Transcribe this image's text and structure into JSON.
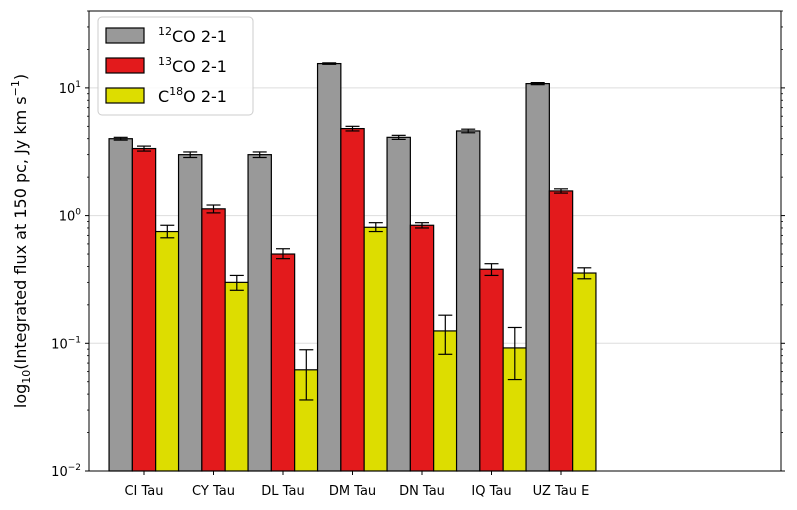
{
  "chart_data": {
    "type": "bar",
    "yscale": "log",
    "ylim": [
      0.01,
      40
    ],
    "ylabel": {
      "prefix": "log",
      "sub": "10",
      "main": "(Integrated flux at 150 pc, Jy km s",
      "sup": "−1",
      "suffix": ")"
    },
    "categories": [
      "CI Tau",
      "CY Tau",
      "DL Tau",
      "DM Tau",
      "DN Tau",
      "IQ Tau",
      "UZ Tau E"
    ],
    "yticks": [
      {
        "value": 0.01,
        "base": "10",
        "exp": "−2"
      },
      {
        "value": 0.1,
        "base": "10",
        "exp": "−1"
      },
      {
        "value": 1,
        "base": "10",
        "exp": "0"
      },
      {
        "value": 10,
        "base": "10",
        "exp": "1"
      }
    ],
    "grid": "horizontal major",
    "legend_position": "top-left",
    "series": [
      {
        "name": "12CO 2-1",
        "label": {
          "sup": "12",
          "text": "CO 2-1",
          "pre": ""
        },
        "color": "#999999",
        "values": [
          4.0,
          3.0,
          3.0,
          15.5,
          4.1,
          4.6,
          10.8
        ],
        "err_low": [
          3.9,
          2.85,
          2.85,
          15.3,
          3.95,
          4.45,
          10.6
        ],
        "err_high": [
          4.1,
          3.15,
          3.15,
          15.7,
          4.25,
          4.75,
          11.0
        ]
      },
      {
        "name": "13CO 2-1",
        "label": {
          "sup": "13",
          "text": "CO 2-1",
          "pre": ""
        },
        "color": "#e31a1c",
        "values": [
          3.35,
          1.13,
          0.5,
          4.8,
          0.84,
          0.38,
          1.56
        ],
        "err_low": [
          3.2,
          1.05,
          0.46,
          4.6,
          0.8,
          0.34,
          1.5
        ],
        "err_high": [
          3.5,
          1.21,
          0.55,
          5.0,
          0.88,
          0.42,
          1.62
        ]
      },
      {
        "name": "C18O 2-1",
        "label": {
          "pre": "C",
          "sup": "18",
          "text": "O 2-1"
        },
        "color": "#dddd00",
        "values": [
          0.75,
          0.3,
          0.062,
          0.81,
          0.125,
          0.092,
          0.355
        ],
        "err_low": [
          0.67,
          0.26,
          0.036,
          0.75,
          0.082,
          0.052,
          0.32
        ],
        "err_high": [
          0.84,
          0.34,
          0.089,
          0.88,
          0.166,
          0.133,
          0.39
        ]
      }
    ]
  }
}
